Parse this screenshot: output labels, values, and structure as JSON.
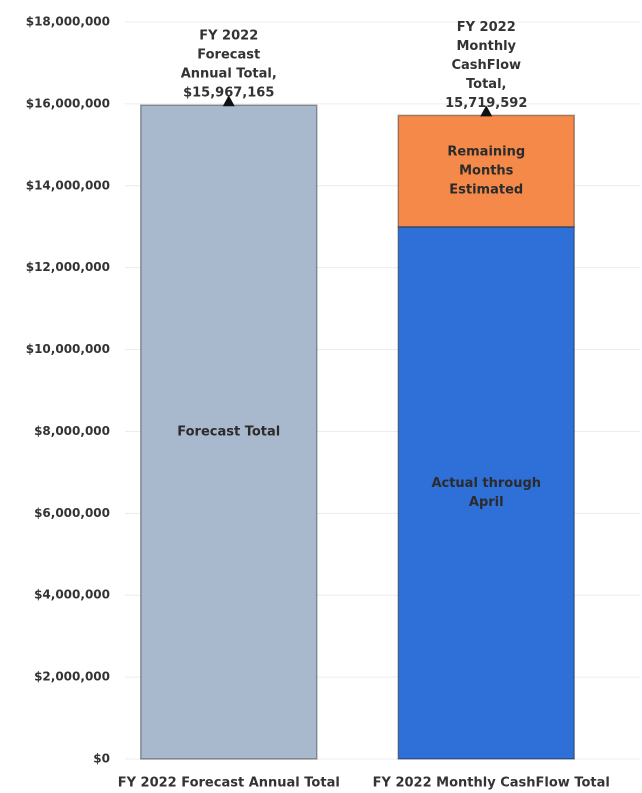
{
  "chart_data": {
    "type": "bar",
    "stacked": true,
    "categories": [
      "FY 2022 Forecast Annual Total",
      "FY 2022 Monthly CashFlow Total"
    ],
    "series": [
      {
        "name": "Forecast Total",
        "color": "#a9b9cd",
        "values": [
          15967165,
          null
        ]
      },
      {
        "name": "Actual through April",
        "color": "#2f6fd8",
        "values": [
          null,
          13000000
        ]
      },
      {
        "name": "Remaining Months Estimated",
        "color": "#f5894a",
        "values": [
          null,
          2719592
        ]
      }
    ],
    "annotations": [
      {
        "lines": [
          "FY 2022",
          "Forecast",
          "Annual Total,",
          "$15,967,165"
        ]
      },
      {
        "lines": [
          "FY 2022",
          "Monthly",
          "CashFlow",
          "Total,",
          "15,719,592"
        ]
      }
    ],
    "ylim": [
      0,
      18000000
    ],
    "yticks": [
      {
        "value": 0,
        "label": "$0"
      },
      {
        "value": 2000000,
        "label": "$2,000,000"
      },
      {
        "value": 4000000,
        "label": "$4,000,000"
      },
      {
        "value": 6000000,
        "label": "$6,000,000"
      },
      {
        "value": 8000000,
        "label": "$8,000,000"
      },
      {
        "value": 10000000,
        "label": "$10,000,000"
      },
      {
        "value": 12000000,
        "label": "$12,000,000"
      },
      {
        "value": 14000000,
        "label": "$14,000,000"
      },
      {
        "value": 16000000,
        "label": "$16,000,000"
      },
      {
        "value": 18000000,
        "label": "$18,000,000"
      }
    ],
    "grid": true
  }
}
